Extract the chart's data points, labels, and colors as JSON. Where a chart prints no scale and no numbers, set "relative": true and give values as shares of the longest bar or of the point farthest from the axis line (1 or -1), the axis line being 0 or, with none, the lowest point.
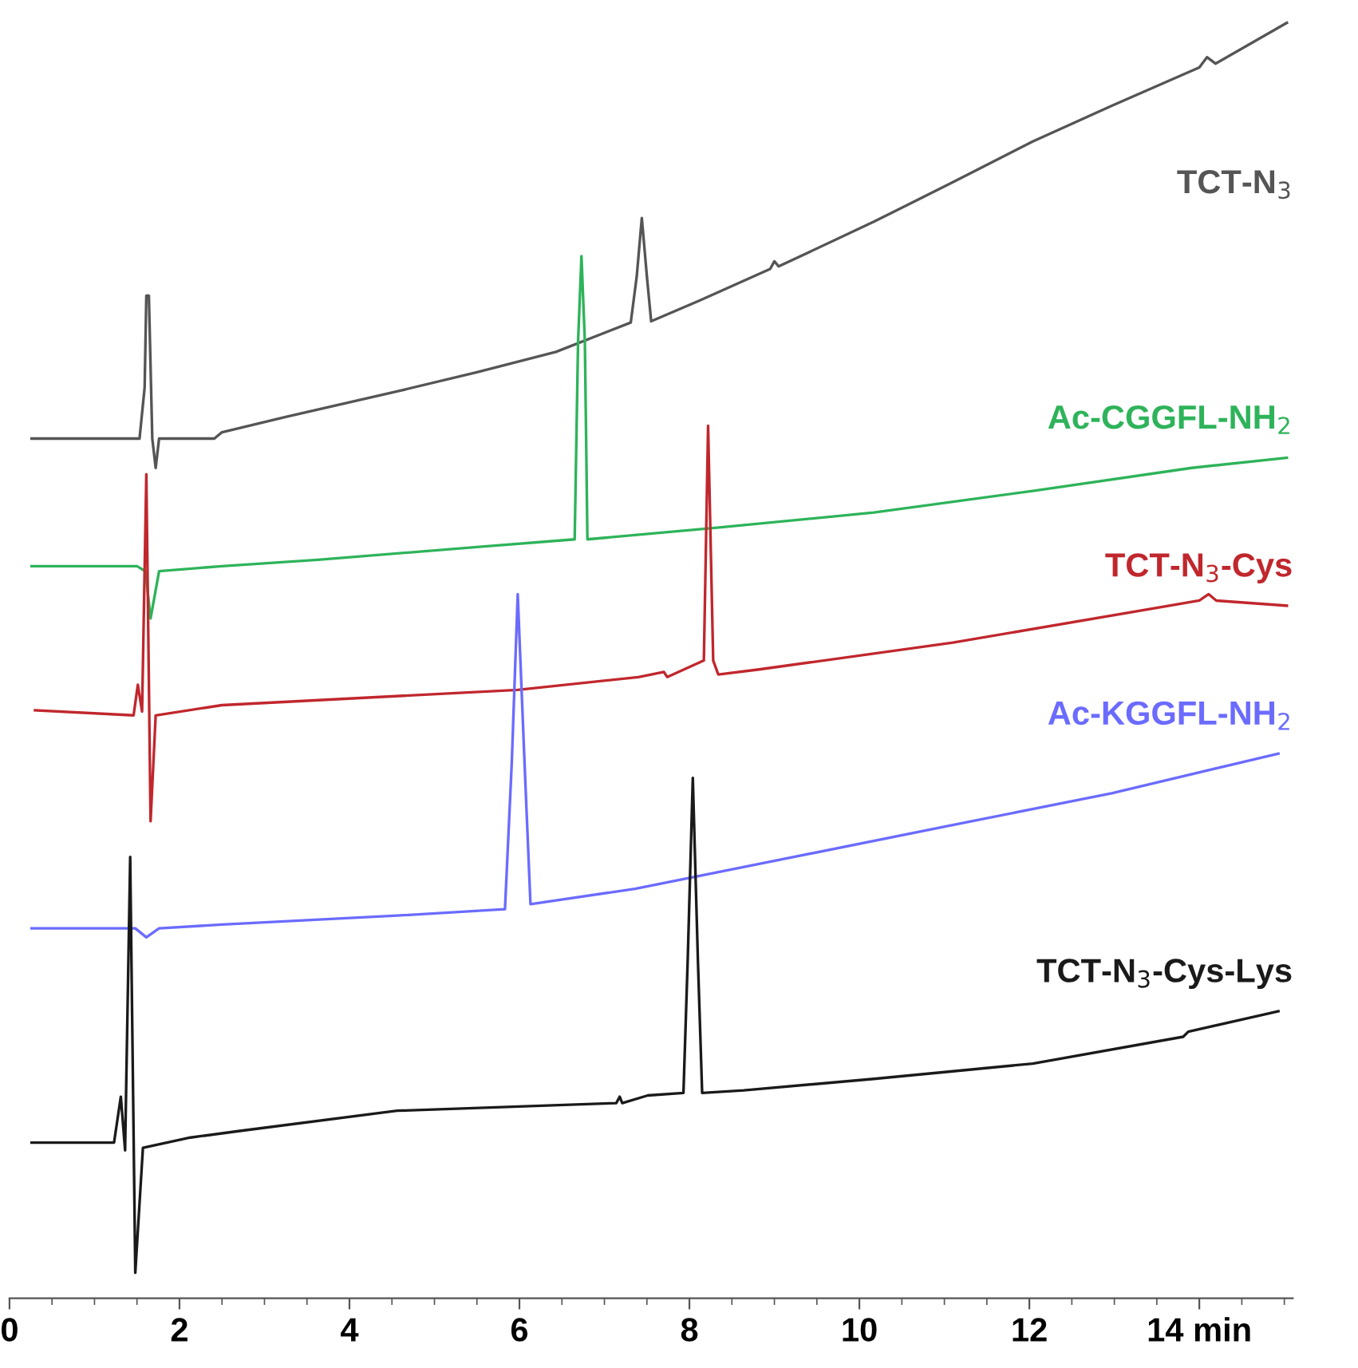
{
  "chart_data": {
    "type": "line",
    "relative": true,
    "xlim": [
      0,
      15.1
    ],
    "xticks": [
      0,
      2,
      4,
      6,
      8,
      10,
      12,
      {
        "value": 14,
        "label": "14 min"
      }
    ],
    "grid": false,
    "legend": false,
    "marker": "none",
    "line_style": "solid",
    "series": [
      {
        "name": "TCT-N$_{3}$",
        "color": "#555555",
        "x": [
          0.26,
          1.53,
          1.59,
          1.61,
          1.64,
          1.68,
          1.72,
          1.76,
          2.41,
          2.5,
          3.25,
          4.56,
          5.5,
          6.43,
          7.31,
          7.38,
          7.44,
          7.5,
          7.55,
          8.11,
          8.95,
          9.0,
          9.05,
          10.17,
          11.1,
          12.04,
          12.97,
          14.0,
          14.09,
          14.19,
          15.03
        ],
        "values": [
          0.674,
          0.674,
          0.714,
          0.786,
          0.786,
          0.674,
          0.651,
          0.674,
          0.674,
          0.679,
          0.691,
          0.711,
          0.726,
          0.742,
          0.765,
          0.801,
          0.847,
          0.801,
          0.766,
          0.782,
          0.807,
          0.813,
          0.809,
          0.844,
          0.875,
          0.907,
          0.935,
          0.965,
          0.973,
          0.968,
          1.0
        ]
      },
      {
        "name": "Ac-CGGFL-NH$_{2}$",
        "color": "#2eb35a",
        "x": [
          0.26,
          1.5,
          1.6,
          1.66,
          1.76,
          2.5,
          3.63,
          5.5,
          6.65,
          6.69,
          6.73,
          6.77,
          6.8,
          8.3,
          10.17,
          12.04,
          13.91,
          15.03
        ],
        "values": [
          0.574,
          0.574,
          0.57,
          0.533,
          0.57,
          0.574,
          0.579,
          0.589,
          0.595,
          0.75,
          0.817,
          0.75,
          0.595,
          0.604,
          0.616,
          0.633,
          0.651,
          0.659
        ]
      },
      {
        "name": "TCT-N$_{3}$-Cys",
        "color": "#c0272d",
        "x": [
          0.3,
          1.46,
          1.51,
          1.56,
          1.61,
          1.66,
          1.72,
          2.5,
          5.98,
          7.4,
          7.7,
          7.74,
          8.17,
          8.22,
          8.28,
          8.34,
          8.82,
          11.1,
          14.0,
          14.11,
          14.2,
          15.03
        ],
        "values": [
          0.461,
          0.457,
          0.481,
          0.46,
          0.646,
          0.374,
          0.457,
          0.465,
          0.477,
          0.487,
          0.491,
          0.487,
          0.5,
          0.684,
          0.5,
          0.489,
          0.493,
          0.514,
          0.547,
          0.552,
          0.547,
          0.543
        ]
      },
      {
        "name": "Ac-KGGFL-NH$_{2}$",
        "color": "#6b6bff",
        "x": [
          0.26,
          1.48,
          1.61,
          1.76,
          2.5,
          4.56,
          5.83,
          5.91,
          5.98,
          6.06,
          6.13,
          7.36,
          9.23,
          11.1,
          12.97,
          14.93
        ],
        "values": [
          0.29,
          0.29,
          0.283,
          0.29,
          0.293,
          0.3,
          0.305,
          0.42,
          0.552,
          0.42,
          0.309,
          0.321,
          0.346,
          0.371,
          0.396,
          0.427
        ]
      },
      {
        "name": "TCT-N$_{3}$-Cys-Lys",
        "color": "#1a1a1a",
        "x": [
          0.26,
          1.23,
          1.31,
          1.36,
          1.42,
          1.48,
          1.57,
          2.13,
          2.69,
          4.56,
          7.14,
          7.18,
          7.21,
          7.51,
          7.93,
          7.98,
          8.04,
          8.1,
          8.15,
          8.64,
          10.17,
          12.04,
          13.81,
          13.87,
          14.93
        ],
        "values": [
          0.122,
          0.122,
          0.158,
          0.116,
          0.346,
          0.02,
          0.118,
          0.126,
          0.131,
          0.147,
          0.153,
          0.158,
          0.153,
          0.159,
          0.161,
          0.265,
          0.408,
          0.265,
          0.161,
          0.163,
          0.172,
          0.184,
          0.205,
          0.209,
          0.225
        ]
      }
    ]
  }
}
